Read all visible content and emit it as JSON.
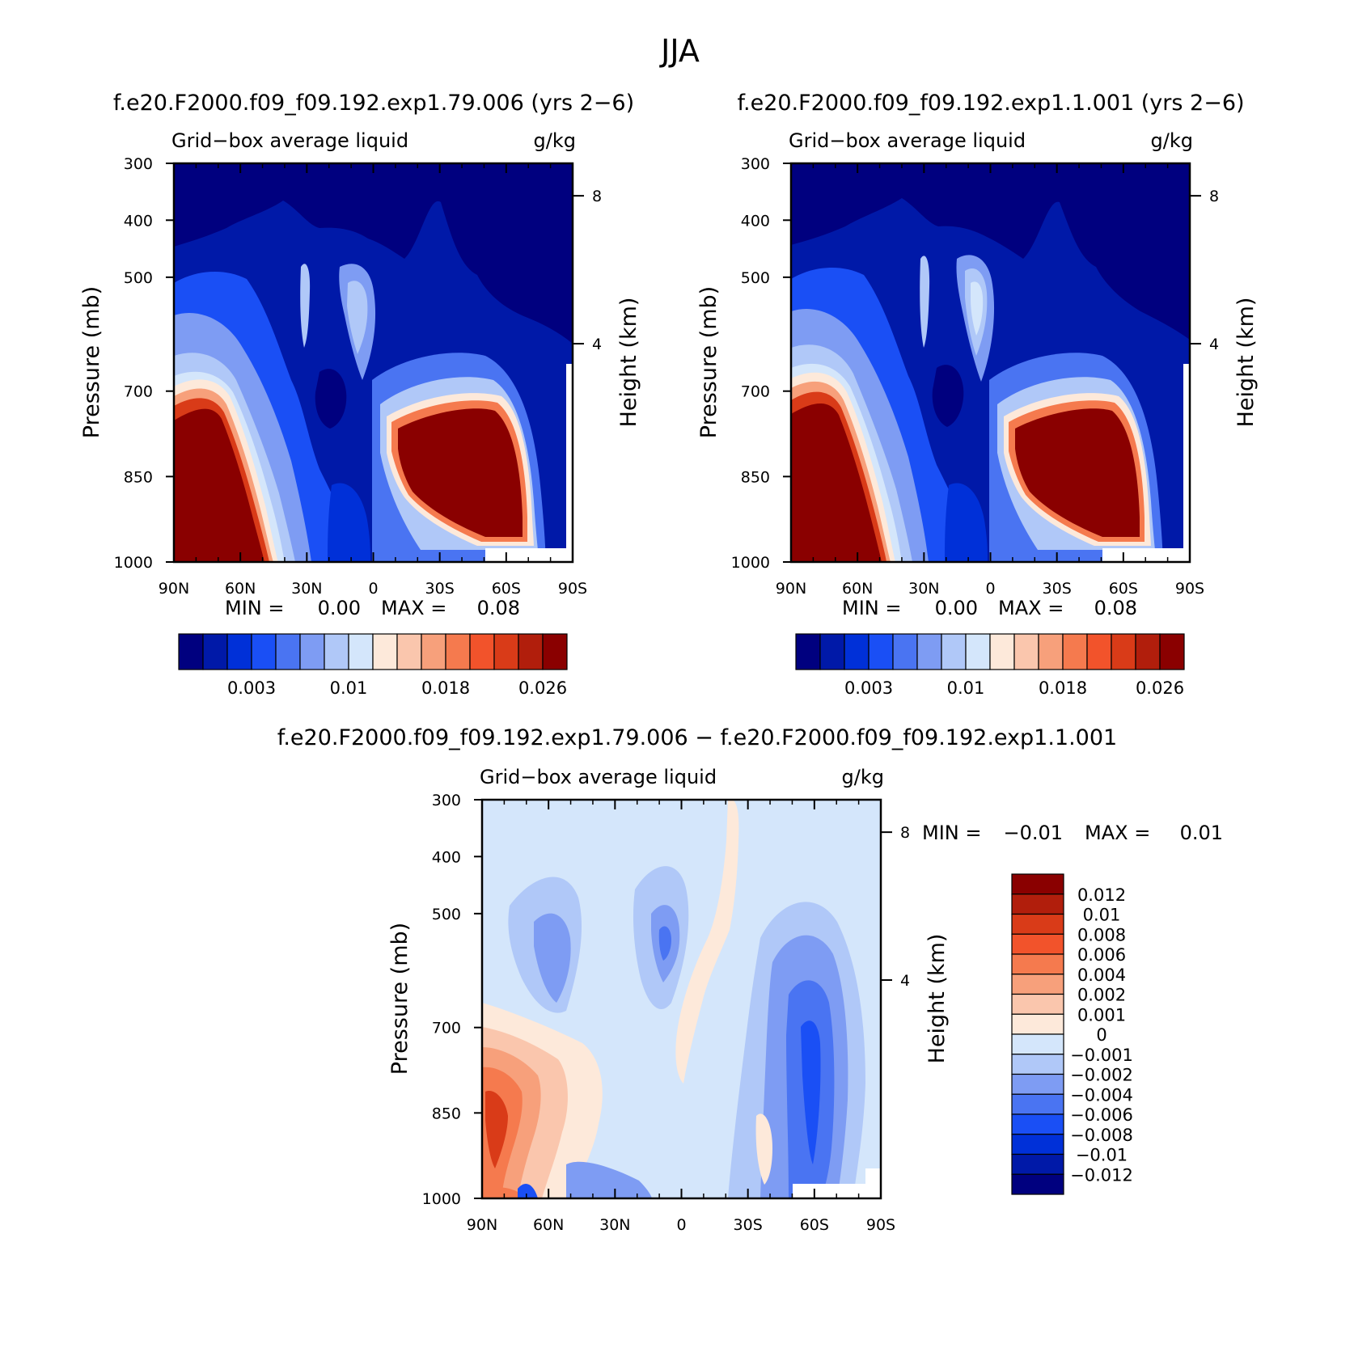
{
  "figure_title": "JJA",
  "panels_header": {
    "title_a": "f.e20.F2000.f09_f09.192.exp1.79.006 (yrs 2−6)",
    "title_b": "f.e20.F2000.f09_f09.192.exp1.1.001 (yrs 2−6)",
    "title_diff": "f.e20.F2000.f09_f09.192.exp1.79.006 − f.e20.F2000.f09_f09.192.exp1.1.001"
  },
  "chart_data": [
    {
      "type": "heatmap",
      "field": "Grid−box average liquid",
      "units": "g/kg",
      "ylabel": "Pressure (mb)",
      "y2label": "Height (km)",
      "x_ticks": [
        "90N",
        "60N",
        "30N",
        "0",
        "30S",
        "60S",
        "90S"
      ],
      "y_ticks": [
        "300",
        "400",
        "500",
        "700",
        "850",
        "1000"
      ],
      "y2_ticks": [
        "8",
        "4"
      ],
      "stats": {
        "min_label": "MIN =",
        "min_value": "0.00",
        "max_label": "MAX =",
        "max_value": "0.08"
      },
      "colorbar": {
        "orientation": "horizontal",
        "colors": [
          "#00007f",
          "#0019a8",
          "#0030d8",
          "#1a4ff5",
          "#4a74f2",
          "#7e9cf3",
          "#b0c8f8",
          "#d4e6fb",
          "#fde9da",
          "#fac6ad",
          "#f7a07b",
          "#f57a4e",
          "#f2532b",
          "#d93b18",
          "#b11e0c",
          "#8a0000"
        ],
        "tick_labels": [
          "0.003",
          "0.01",
          "0.018",
          "0.026"
        ]
      }
    },
    {
      "type": "heatmap",
      "field": "Grid−box average liquid",
      "units": "g/kg",
      "ylabel": "Pressure (mb)",
      "y2label": "Height (km)",
      "x_ticks": [
        "90N",
        "60N",
        "30N",
        "0",
        "30S",
        "60S",
        "90S"
      ],
      "y_ticks": [
        "300",
        "400",
        "500",
        "700",
        "850",
        "1000"
      ],
      "y2_ticks": [
        "8",
        "4"
      ],
      "stats": {
        "min_label": "MIN =",
        "min_value": "0.00",
        "max_label": "MAX =",
        "max_value": "0.08"
      },
      "colorbar": {
        "orientation": "horizontal",
        "colors": [
          "#00007f",
          "#0019a8",
          "#0030d8",
          "#1a4ff5",
          "#4a74f2",
          "#7e9cf3",
          "#b0c8f8",
          "#d4e6fb",
          "#fde9da",
          "#fac6ad",
          "#f7a07b",
          "#f57a4e",
          "#f2532b",
          "#d93b18",
          "#b11e0c",
          "#8a0000"
        ],
        "tick_labels": [
          "0.003",
          "0.01",
          "0.018",
          "0.026"
        ]
      }
    },
    {
      "type": "heatmap",
      "field": "Grid−box average liquid",
      "units": "g/kg",
      "ylabel": "Pressure (mb)",
      "y2label": "Height (km)",
      "x_ticks": [
        "90N",
        "60N",
        "30N",
        "0",
        "30S",
        "60S",
        "90S"
      ],
      "y_ticks": [
        "300",
        "400",
        "500",
        "700",
        "850",
        "1000"
      ],
      "y2_ticks": [
        "8",
        "4"
      ],
      "stats": {
        "min_label": "MIN =",
        "min_value": "−0.01",
        "max_label": "MAX =",
        "max_value": "0.01"
      },
      "colorbar": {
        "orientation": "vertical",
        "colors": [
          "#8a0000",
          "#b11e0c",
          "#d93b18",
          "#f2532b",
          "#f57a4e",
          "#f7a07b",
          "#fac6ad",
          "#fde9da",
          "#d4e6fb",
          "#b0c8f8",
          "#7e9cf3",
          "#4a74f2",
          "#1a4ff5",
          "#0030d8",
          "#0019a8",
          "#00007f"
        ],
        "tick_labels": [
          "0.012",
          "0.01",
          "0.008",
          "0.006",
          "0.004",
          "0.002",
          "0.001",
          "0",
          "−0.001",
          "−0.002",
          "−0.004",
          "−0.006",
          "−0.008",
          "−0.01",
          "−0.012"
        ]
      }
    }
  ]
}
